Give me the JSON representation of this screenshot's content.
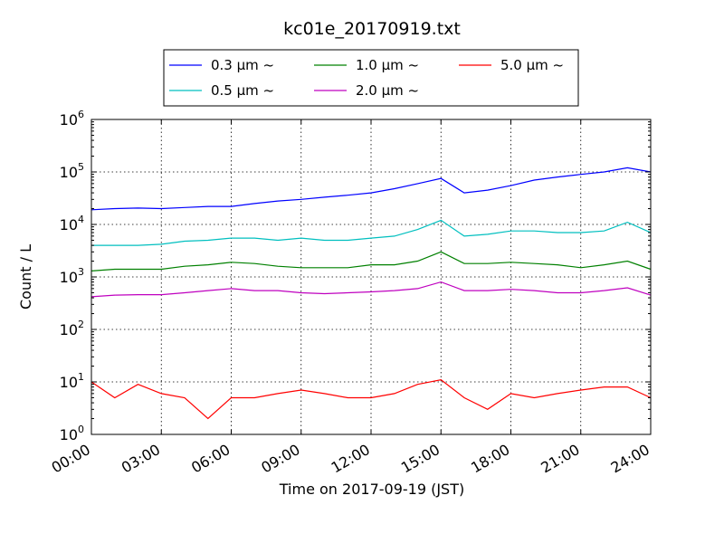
{
  "chart_data": {
    "type": "line",
    "title": "kc01e_20170919.txt",
    "xlabel": "Time on 2017-09-19 (JST)",
    "ylabel": "Count / L",
    "yscale": "log",
    "ylim": [
      1,
      1000000
    ],
    "xlim": [
      "00:00",
      "24:00"
    ],
    "x_tick_labels": [
      "00:00",
      "03:00",
      "06:00",
      "09:00",
      "12:00",
      "15:00",
      "18:00",
      "21:00",
      "24:00"
    ],
    "y_tick_labels": [
      {
        "base": "10",
        "exp": "0"
      },
      {
        "base": "10",
        "exp": "1"
      },
      {
        "base": "10",
        "exp": "2"
      },
      {
        "base": "10",
        "exp": "3"
      },
      {
        "base": "10",
        "exp": "4"
      },
      {
        "base": "10",
        "exp": "5"
      },
      {
        "base": "10",
        "exp": "6"
      }
    ],
    "grid": true,
    "legend_position": "top (outside, above plot)",
    "x": [
      "00:00",
      "01:00",
      "02:00",
      "03:00",
      "04:00",
      "05:00",
      "06:00",
      "07:00",
      "08:00",
      "09:00",
      "10:00",
      "11:00",
      "12:00",
      "13:00",
      "14:00",
      "15:00",
      "16:00",
      "17:00",
      "18:00",
      "19:00",
      "20:00",
      "21:00",
      "22:00",
      "23:00",
      "24:00"
    ],
    "series": [
      {
        "name": "0.3 μm ~",
        "color": "#0000ff",
        "values": [
          19000,
          20000,
          20500,
          20000,
          21000,
          22000,
          22000,
          25000,
          28000,
          30000,
          33000,
          36000,
          40000,
          48000,
          60000,
          75000,
          40000,
          45000,
          55000,
          70000,
          80000,
          90000,
          100000,
          120000,
          100000
        ]
      },
      {
        "name": "0.5 μm ~",
        "color": "#00bfbf",
        "values": [
          4000,
          4000,
          4000,
          4200,
          4800,
          5000,
          5500,
          5500,
          5000,
          5500,
          5000,
          5000,
          5500,
          6000,
          8000,
          12000,
          6000,
          6500,
          7500,
          7500,
          7000,
          7000,
          7500,
          11000,
          7000
        ]
      },
      {
        "name": "1.0 μm ~",
        "color": "#008000",
        "values": [
          1300,
          1400,
          1400,
          1400,
          1600,
          1700,
          1900,
          1800,
          1600,
          1500,
          1500,
          1500,
          1700,
          1700,
          2000,
          3000,
          1800,
          1800,
          1900,
          1800,
          1700,
          1500,
          1700,
          2000,
          1400
        ]
      },
      {
        "name": "2.0 μm ~",
        "color": "#bf00bf",
        "values": [
          420,
          450,
          460,
          460,
          500,
          550,
          600,
          550,
          550,
          500,
          480,
          500,
          520,
          550,
          600,
          800,
          550,
          550,
          580,
          550,
          500,
          500,
          550,
          620,
          450
        ]
      },
      {
        "name": "5.0 μm ~",
        "color": "#ff0000",
        "values": [
          10,
          5,
          9,
          6,
          5,
          2,
          5,
          5,
          6,
          7,
          6,
          5,
          5,
          6,
          9,
          11,
          5,
          3,
          6,
          5,
          6,
          7,
          8,
          8,
          5
        ]
      }
    ]
  }
}
